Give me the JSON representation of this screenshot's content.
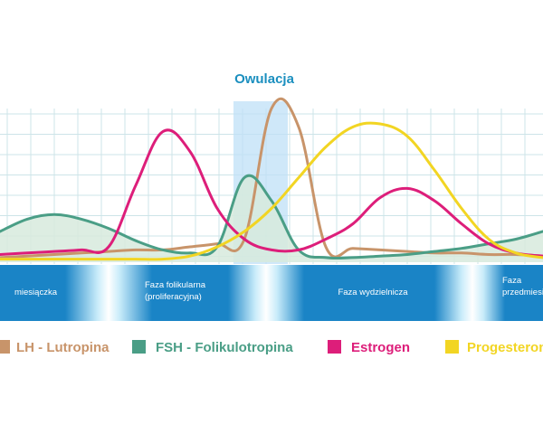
{
  "chart_data": {
    "type": "line",
    "title": "Owulacja",
    "x": [
      0,
      5,
      10,
      15,
      20,
      25,
      30,
      35,
      40,
      45,
      50,
      55,
      60,
      65,
      70,
      75,
      80,
      85,
      90,
      95,
      100
    ],
    "ylim": [
      0,
      100
    ],
    "grid": true,
    "legend_position": "bottom",
    "series": [
      {
        "name": "LH - Lutropina",
        "color": "#c8946a",
        "values": [
          3,
          4,
          5,
          6,
          7,
          8,
          8,
          10,
          12,
          15,
          100,
          88,
          10,
          9,
          8,
          7,
          6,
          6,
          5,
          5,
          4
        ]
      },
      {
        "name": "FSH - Folikulotropina",
        "color": "#4a9e86",
        "values": [
          20,
          28,
          31,
          28,
          22,
          14,
          8,
          6,
          10,
          55,
          40,
          8,
          3,
          3,
          4,
          5,
          7,
          9,
          12,
          15,
          20
        ]
      },
      {
        "name": "Estrogen",
        "color": "#dd1e7a",
        "values": [
          5,
          6,
          7,
          8,
          10,
          50,
          85,
          72,
          35,
          15,
          8,
          8,
          15,
          25,
          42,
          48,
          40,
          25,
          12,
          6,
          4
        ]
      },
      {
        "name": "Progesterone",
        "color": "#f2d523",
        "values": [
          2,
          2,
          2,
          2,
          2,
          2,
          2,
          4,
          10,
          20,
          35,
          55,
          75,
          88,
          90,
          82,
          60,
          35,
          15,
          6,
          3
        ]
      }
    ],
    "phases": [
      {
        "label_lines": [
          "miesiączka"
        ]
      },
      {
        "label_lines": [
          "Faza folikularna",
          "(proliferacyjna)"
        ]
      },
      {
        "label_lines": [
          "Faza wydzielnicza"
        ]
      },
      {
        "label_lines": [
          "Faza",
          "przedmiesiączkowa"
        ]
      }
    ],
    "legend": [
      {
        "label": "LH - Lutropina",
        "color": "#c8946a"
      },
      {
        "label": "FSH - Folikulotropina",
        "color": "#4a9e86"
      },
      {
        "label": "Estrogen",
        "color": "#dd1e7a"
      },
      {
        "label": "Progesterone",
        "color": "#f2d523"
      }
    ]
  },
  "colors": {
    "grid": "#cde4e8",
    "band": "#1a84c6",
    "band_light": "#c9ecfa",
    "ovulation_highlight": "#bfe0f7",
    "fsh_fill": "#d7eadd",
    "title": "#1b8fbf"
  }
}
